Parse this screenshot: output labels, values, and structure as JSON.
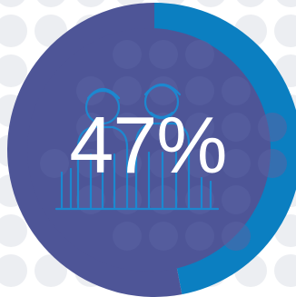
{
  "chart_data": {
    "type": "pie",
    "center_label": "47%",
    "slices": [
      {
        "value": 47,
        "color": "#0b7fc1"
      },
      {
        "value": 53,
        "color": "#4e5597"
      }
    ]
  },
  "colors": {
    "accent": "#0b7fc1",
    "remainder": "#4e5597",
    "icon_stroke": "#1a8bd3",
    "background_dots": "#eceef2"
  },
  "icon": "people-group-icon"
}
